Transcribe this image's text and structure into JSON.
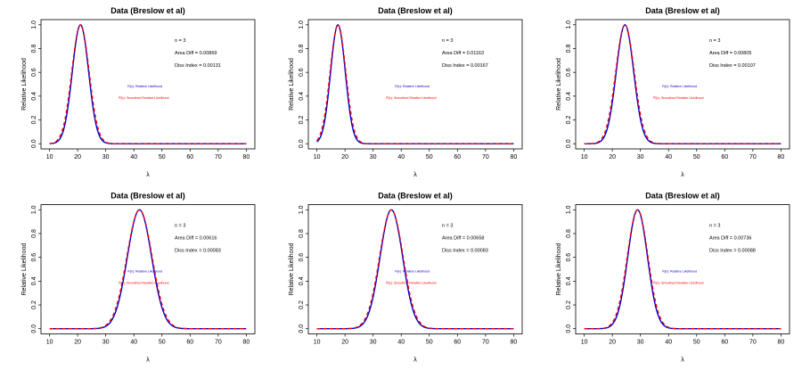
{
  "chart_data": [
    {
      "type": "line",
      "title": "Data (Breslow et al)",
      "xlabel": "λ",
      "ylabel": "Relative Likelihood",
      "xlim": [
        10,
        80
      ],
      "ylim": [
        0,
        1
      ],
      "xticks": [
        10,
        20,
        30,
        40,
        50,
        60,
        70,
        80
      ],
      "yticks": [
        "0.0",
        "0.2",
        "0.4",
        "0.6",
        "0.8",
        "1.0"
      ],
      "n_label": "n = 3",
      "area_label": "Area Diff =  0.00869",
      "diss_label": "Diss Index =  0.00131",
      "legend": [
        "R(λ): Relative Likelihood",
        "R̂(λ): Smoothed Relative Likelihood"
      ],
      "series": [
        {
          "name": "Relative Likelihood",
          "color": "#0000cc",
          "dash": "solid",
          "peak": 21,
          "sd": 2.9
        },
        {
          "name": "Smoothed Relative Likelihood",
          "color": "#ff0000",
          "dash": "dashed",
          "peak": 21,
          "sd": 3.1
        }
      ]
    },
    {
      "type": "line",
      "title": "Data (Breslow et al)",
      "xlabel": "λ",
      "ylabel": "Relative Likelihood",
      "xlim": [
        10,
        80
      ],
      "ylim": [
        0,
        1
      ],
      "xticks": [
        10,
        20,
        30,
        40,
        50,
        60,
        70,
        80
      ],
      "yticks": [
        "0.0",
        "0.2",
        "0.4",
        "0.6",
        "0.8",
        "1.0"
      ],
      "n_label": "n = 3",
      "area_label": "Area Diff =  0.01163",
      "diss_label": "Diss Index =  0.00167",
      "legend": [
        "R(λ): Relative Likelihood",
        "R̂(λ): Smoothed Relative Likelihood"
      ],
      "series": [
        {
          "name": "Relative Likelihood",
          "color": "#0000cc",
          "dash": "solid",
          "peak": 17.5,
          "sd": 2.6
        },
        {
          "name": "Smoothed Relative Likelihood",
          "color": "#ff0000",
          "dash": "dashed",
          "peak": 17.5,
          "sd": 2.8
        }
      ]
    },
    {
      "type": "line",
      "title": "Data (Breslow et al)",
      "xlabel": "λ",
      "ylabel": "Relative Likelihood",
      "xlim": [
        10,
        80
      ],
      "ylim": [
        0,
        1
      ],
      "xticks": [
        10,
        20,
        30,
        40,
        50,
        60,
        70,
        80
      ],
      "yticks": [
        "0.0",
        "0.2",
        "0.4",
        "0.6",
        "0.8",
        "1.0"
      ],
      "n_label": "n = 3",
      "area_label": "Area Diff =  0.00805",
      "diss_label": "Diss Index =  0.00107",
      "legend": [
        "R(λ): Relative Likelihood",
        "R̂(λ): Smoothed Relative Likelihood"
      ],
      "series": [
        {
          "name": "Relative Likelihood",
          "color": "#0000cc",
          "dash": "solid",
          "peak": 24.5,
          "sd": 3.1
        },
        {
          "name": "Smoothed Relative Likelihood",
          "color": "#ff0000",
          "dash": "dashed",
          "peak": 24.5,
          "sd": 3.3
        }
      ]
    },
    {
      "type": "line",
      "title": "Data (Breslow et al)",
      "xlabel": "λ",
      "ylabel": "Relative Likelihood",
      "xlim": [
        10,
        80
      ],
      "ylim": [
        0,
        1
      ],
      "xticks": [
        10,
        20,
        30,
        40,
        50,
        60,
        70,
        80
      ],
      "yticks": [
        "0.0",
        "0.2",
        "0.4",
        "0.6",
        "0.8",
        "1.0"
      ],
      "n_label": "n = 3",
      "area_label": "Area Diff =  0.00616",
      "diss_label": "Diss Index =  0.00083",
      "legend": [
        "R(λ): Relative Likelihood",
        "R̂(λ): Smoothed Relative Likelihood"
      ],
      "series": [
        {
          "name": "Relative Likelihood",
          "color": "#0000cc",
          "dash": "solid",
          "peak": 42,
          "sd": 4.3
        },
        {
          "name": "Smoothed Relative Likelihood",
          "color": "#ff0000",
          "dash": "dashed",
          "peak": 42,
          "sd": 4.5
        }
      ]
    },
    {
      "type": "line",
      "title": "Data (Breslow et al)",
      "xlabel": "λ",
      "ylabel": "Relative Likelihood",
      "xlim": [
        10,
        80
      ],
      "ylim": [
        0,
        1
      ],
      "xticks": [
        10,
        20,
        30,
        40,
        50,
        60,
        70,
        80
      ],
      "yticks": [
        "0.0",
        "0.2",
        "0.4",
        "0.6",
        "0.8",
        "1.0"
      ],
      "n_label": "n = 3",
      "area_label": "Area Diff =  0.00658",
      "diss_label": "Diss Index =  0.00083",
      "legend": [
        "R(λ): Relative Likelihood",
        "R̂(λ): Smoothed Relative Likelihood"
      ],
      "series": [
        {
          "name": "Relative Likelihood",
          "color": "#0000cc",
          "dash": "solid",
          "peak": 36.5,
          "sd": 4.0
        },
        {
          "name": "Smoothed Relative Likelihood",
          "color": "#ff0000",
          "dash": "dashed",
          "peak": 36.5,
          "sd": 4.2
        }
      ]
    },
    {
      "type": "line",
      "title": "Data (Breslow et al)",
      "xlabel": "λ",
      "ylabel": "Relative Likelihood",
      "xlim": [
        10,
        80
      ],
      "ylim": [
        0,
        1
      ],
      "xticks": [
        10,
        20,
        30,
        40,
        50,
        60,
        70,
        80
      ],
      "yticks": [
        "0.0",
        "0.2",
        "0.4",
        "0.6",
        "0.8",
        "1.0"
      ],
      "n_label": "n = 3",
      "area_label": "Area Diff =  0.00736",
      "diss_label": "Diss Index =  0.00088",
      "legend": [
        "R(λ): Relative Likelihood",
        "R̂(λ): Smoothed Relative Likelihood"
      ],
      "series": [
        {
          "name": "Relative Likelihood",
          "color": "#0000cc",
          "dash": "solid",
          "peak": 29,
          "sd": 3.5
        },
        {
          "name": "Smoothed Relative Likelihood",
          "color": "#ff0000",
          "dash": "dashed",
          "peak": 29,
          "sd": 3.7
        }
      ]
    }
  ]
}
